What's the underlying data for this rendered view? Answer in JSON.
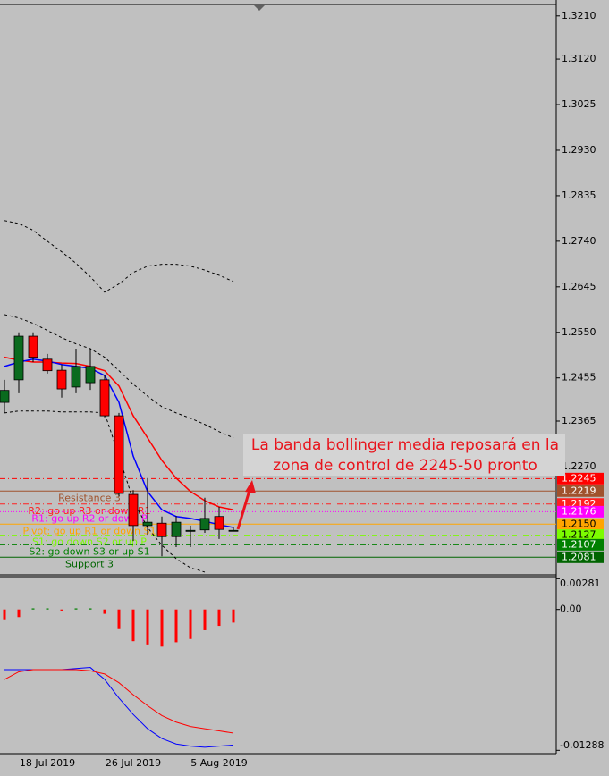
{
  "chart_data": [
    {
      "type": "candlestick",
      "categories": [
        null,
        null,
        null,
        "18 Jul 2019",
        null,
        null,
        null,
        null,
        null,
        "26 Jul 2019",
        null,
        null,
        null,
        null,
        null,
        "5 Aug 2019",
        null
      ],
      "open": [
        1.2404,
        1.2451,
        1.2542,
        1.2494,
        1.2471,
        1.2436,
        1.2445,
        1.2451,
        1.2376,
        1.2212,
        1.2147,
        1.2152,
        1.2124,
        1.2135,
        1.2138,
        1.2166,
        1.2137
      ],
      "high": [
        1.2451,
        1.255,
        1.255,
        1.2505,
        1.2483,
        1.2516,
        1.2516,
        1.246,
        1.2382,
        1.2221,
        1.2246,
        1.2166,
        1.2167,
        1.2147,
        1.2205,
        1.2186,
        1.2143
      ],
      "low": [
        1.2382,
        1.2423,
        1.2488,
        1.2464,
        1.2414,
        1.2423,
        1.243,
        1.2373,
        1.2208,
        1.2115,
        1.2128,
        1.2083,
        1.2102,
        1.2102,
        1.2132,
        1.2119,
        1.2135
      ],
      "close": [
        1.2429,
        1.2542,
        1.2498,
        1.247,
        1.2432,
        1.2479,
        1.2479,
        1.2376,
        1.2214,
        1.2147,
        1.2154,
        1.2124,
        1.2154,
        1.2137,
        1.2162,
        1.2139,
        1.2137
      ],
      "up_color": "#0a6b1e",
      "down_color": "#ff0000",
      "overlays": [
        {
          "color": "#000000",
          "style": "dashed",
          "values": [
            1.2783,
            1.2777,
            1.2763,
            1.274,
            1.2718,
            1.2694,
            1.2666,
            1.2634,
            1.2651,
            1.2675,
            1.2688,
            1.2692,
            1.2692,
            1.2688,
            1.268,
            1.2669,
            1.2656
          ]
        },
        {
          "color": "#000000",
          "style": "dashed",
          "values": [
            1.2587,
            1.258,
            1.2569,
            1.2554,
            1.2539,
            1.2526,
            1.2516,
            1.2498,
            1.247,
            1.2442,
            1.2417,
            1.2395,
            1.2382,
            1.2371,
            1.2358,
            1.2343,
            1.233
          ]
        },
        {
          "color": "#000000",
          "style": "dashed",
          "values": [
            1.2382,
            1.2386,
            1.2386,
            1.2386,
            1.2384,
            1.2384,
            1.2384,
            1.2382,
            1.2292,
            1.2199,
            1.2143,
            1.2106,
            1.2078,
            1.2059,
            1.205,
            null,
            null
          ]
        },
        {
          "color": "#ff0000",
          "style": "solid",
          "values": [
            1.2498,
            1.2492,
            1.2488,
            1.2488,
            1.2486,
            1.2485,
            1.2479,
            1.247,
            1.2438,
            1.2376,
            1.233,
            1.2283,
            1.2246,
            1.2218,
            1.2199,
            1.2186,
            1.218
          ]
        },
        {
          "color": "#0000ff",
          "style": "solid",
          "values": [
            1.2479,
            1.2488,
            1.2494,
            1.249,
            1.2483,
            1.2479,
            1.2475,
            1.246,
            1.2404,
            1.2292,
            1.2218,
            1.218,
            1.2166,
            1.2162,
            1.2156,
            1.2149,
            1.2143
          ]
        }
      ],
      "levels": [
        {
          "value": 1.2245,
          "value_label": "1.2245",
          "color": "#ff0000",
          "label_color": "#ffffff",
          "style": "dashdot"
        },
        {
          "value": 1.2219,
          "value_label": "1.2219",
          "label": "Resistance 3",
          "color": "#a0522d",
          "label_color": "#ffffff",
          "style": "solid"
        },
        {
          "value": 1.2192,
          "value_label": "1.2192",
          "label": "R2: go up R3 or down R1",
          "color": "#ff2020",
          "label_color": "#ffffff",
          "style": "dashdot"
        },
        {
          "value": 1.2176,
          "value_label": "1.2176",
          "label": "R1: go up R2 or down P",
          "color": "#ff00ff",
          "label_color": "#ffffff",
          "style": "dotted"
        },
        {
          "value": 1.215,
          "value_label": "1.2150",
          "label": "Pivot: go up R1 or down S1",
          "color": "#ffa500",
          "label_color": "#000000",
          "style": "solid"
        },
        {
          "value": 1.2127,
          "value_label": "1.2127",
          "label": "S1: go down S2 or up P",
          "color": "#7cfc00",
          "label_color": "#000000",
          "style": "dashdot"
        },
        {
          "value": 1.2107,
          "value_label": "1.2107",
          "label": "S2: go down S3 or up S1",
          "color": "#008000",
          "label_color": "#ffffff",
          "style": "dashdot"
        },
        {
          "value": 1.2081,
          "value_label": "1.2081",
          "label": "Support 3",
          "color": "#006400",
          "label_color": "#ffffff",
          "style": "solid"
        }
      ],
      "annotation": {
        "lines": [
          "La banda bollinger media reposará en la",
          "zona de control de 2245-50 pronto"
        ],
        "color": "#e8141c"
      },
      "ylim": [
        1.2048,
        1.3232
      ],
      "yticks": [
        {
          "value": 1.321,
          "label": "1.3210"
        },
        {
          "value": 1.312,
          "label": "1.3120"
        },
        {
          "value": 1.3025,
          "label": "1.3025"
        },
        {
          "value": 1.293,
          "label": "1.2930"
        },
        {
          "value": 1.2835,
          "label": "1.2835"
        },
        {
          "value": 1.274,
          "label": "1.2740"
        },
        {
          "value": 1.2645,
          "label": "1.2645"
        },
        {
          "value": 1.255,
          "label": "1.2550"
        },
        {
          "value": 1.2455,
          "label": "1.2455"
        },
        {
          "value": 1.2365,
          "label": "1.2365"
        },
        {
          "value": 1.227,
          "label": "1.2270"
        }
      ]
    },
    {
      "type": "macd",
      "histogram": {
        "up_color": "#008000",
        "down_color": "#ff0000",
        "values": [
          -0.0009,
          -0.0007,
          0.0001,
          0.0001,
          -0.0001,
          0.0001,
          0.0001,
          -0.0004,
          -0.0018,
          -0.0029,
          -0.0032,
          -0.0034,
          -0.003,
          -0.0027,
          -0.0019,
          -0.0015,
          -0.0012
        ]
      },
      "lines": [
        {
          "color": "#0000ff",
          "values": [
            -0.0055,
            -0.0055,
            -0.0055,
            -0.0055,
            -0.0055,
            -0.0054,
            -0.0053,
            -0.0064,
            -0.0081,
            -0.0096,
            -0.0109,
            -0.0118,
            -0.0123,
            -0.0125,
            -0.0126,
            -0.0125,
            -0.0124
          ]
        },
        {
          "color": "#ff0000",
          "values": [
            -0.0064,
            -0.0057,
            -0.0055,
            -0.0055,
            -0.0055,
            -0.0055,
            -0.0056,
            -0.0059,
            -0.0067,
            -0.0078,
            -0.0088,
            -0.0097,
            -0.0103,
            -0.0107,
            -0.0109,
            -0.0111,
            -0.0113
          ]
        }
      ],
      "ylim": [
        -0.0131,
        0.003
      ],
      "yticks": [
        0.00281,
        {
          "value": 0,
          "label": "0.00"
        },
        -0.01288
      ]
    }
  ]
}
